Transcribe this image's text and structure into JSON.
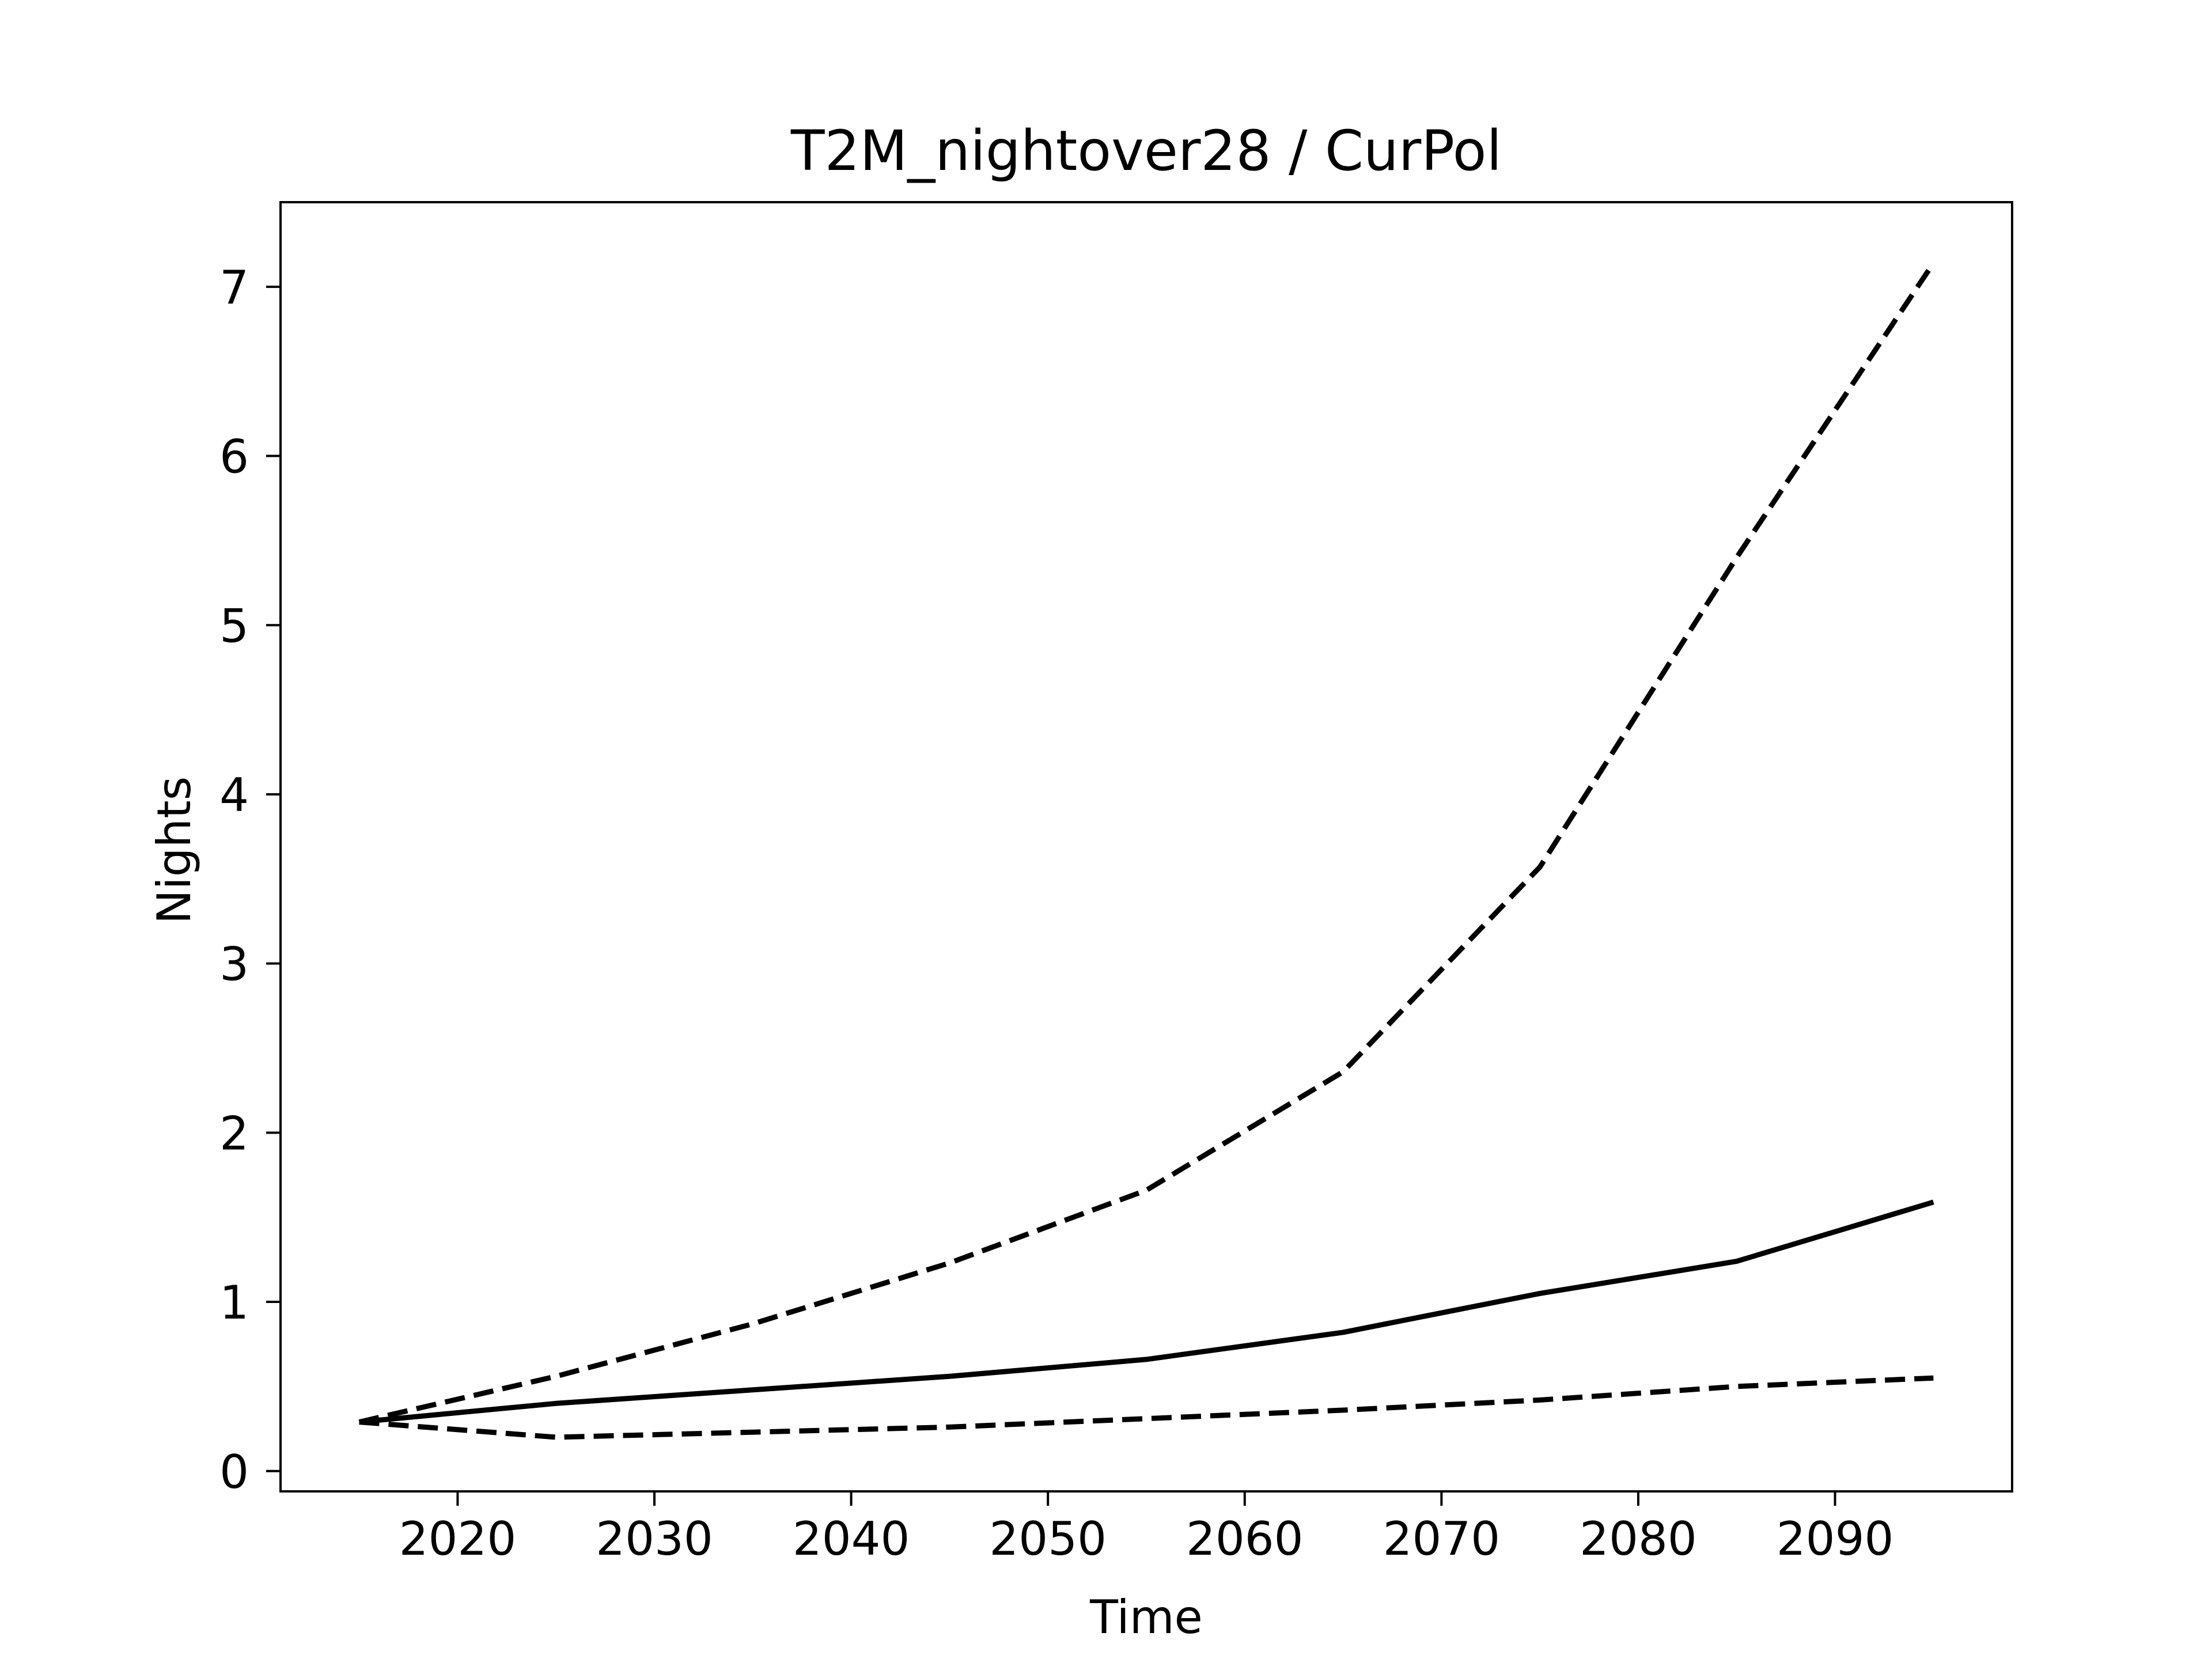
{
  "chart_data": {
    "type": "line",
    "title": "T2M_nightover28 / CurPol",
    "xlabel": "Time",
    "ylabel": "Nights",
    "xlim": [
      2011,
      2099
    ],
    "ylim": [
      -0.12,
      7.5
    ],
    "xticks": [
      2020,
      2030,
      2040,
      2050,
      2060,
      2070,
      2080,
      2090
    ],
    "yticks": [
      0,
      1,
      2,
      3,
      4,
      5,
      6,
      7
    ],
    "grid": false,
    "legend": "none",
    "line_color": "#000000",
    "x": [
      2015,
      2025,
      2035,
      2045,
      2055,
      2065,
      2075,
      2085,
      2095
    ],
    "series": [
      {
        "style": "dashed",
        "values": [
          0.29,
          0.56,
          0.87,
          1.23,
          1.66,
          2.36,
          3.57,
          5.4,
          7.14
        ]
      },
      {
        "style": "solid",
        "values": [
          0.29,
          0.4,
          0.48,
          0.56,
          0.66,
          0.82,
          1.05,
          1.24,
          1.59
        ]
      },
      {
        "style": "dashed",
        "values": [
          0.29,
          0.2,
          0.23,
          0.26,
          0.31,
          0.36,
          0.42,
          0.5,
          0.55
        ]
      }
    ]
  }
}
